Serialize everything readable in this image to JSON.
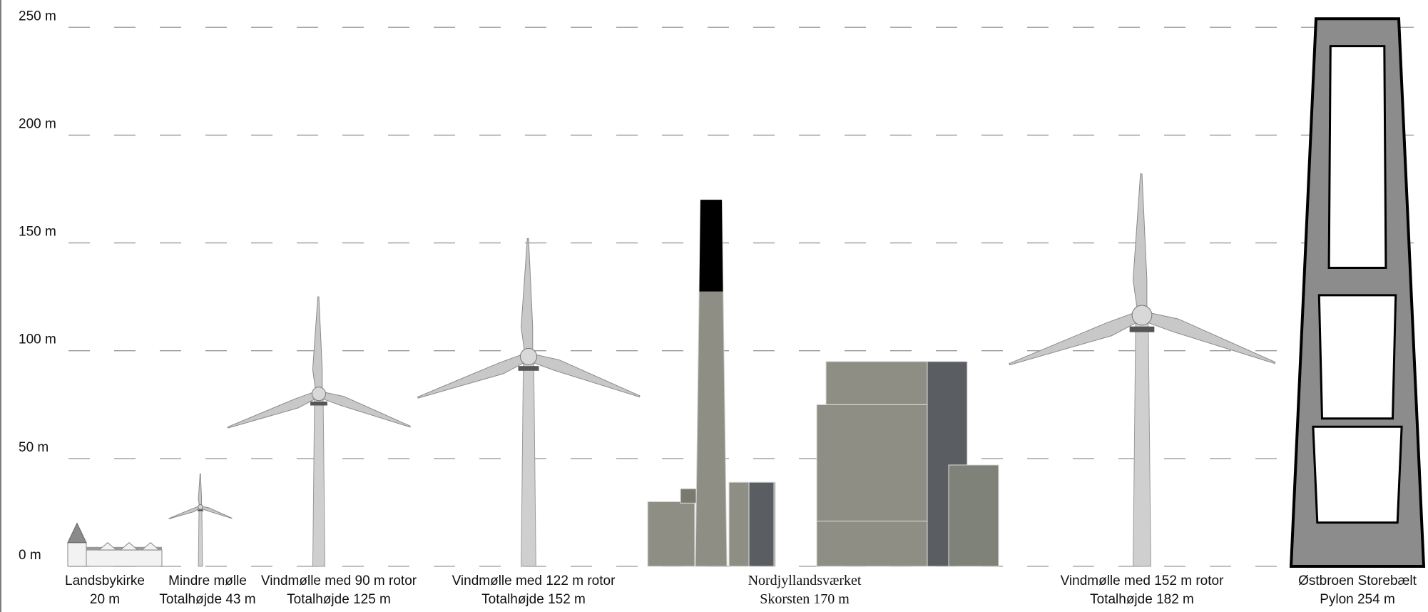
{
  "chart_data": {
    "type": "height-comparison",
    "categories": [
      "Landsbykirke",
      "Mindre mølle",
      "Vindmølle med 90 m rotor",
      "Vindmølle med 122 m rotor",
      "Nordjyllandsværket",
      "Vindmølle med 152 m rotor",
      "Østbroen Storebælt"
    ],
    "values": [
      20,
      43,
      125,
      152,
      170,
      182,
      254
    ],
    "value_labels": [
      "20 m",
      "Totalhøjde 43 m",
      "Totalhøjde 125 m",
      "Totalhøjde 152 m",
      "Skorsten 170 m",
      "Totalhøjde 182 m",
      "Pylon 254 m"
    ],
    "shapes": [
      "church",
      "turbine",
      "turbine",
      "turbine",
      "plant",
      "turbine",
      "pylon"
    ],
    "ylim": [
      0,
      262
    ],
    "yticks": [
      {
        "value": 0,
        "label": "0 m"
      },
      {
        "value": 50,
        "label": "50 m"
      },
      {
        "value": 100,
        "label": "100 m"
      },
      {
        "value": 150,
        "label": "150 m"
      },
      {
        "value": 200,
        "label": "200 m"
      },
      {
        "value": 250,
        "label": "250 m"
      }
    ],
    "grid": true
  }
}
